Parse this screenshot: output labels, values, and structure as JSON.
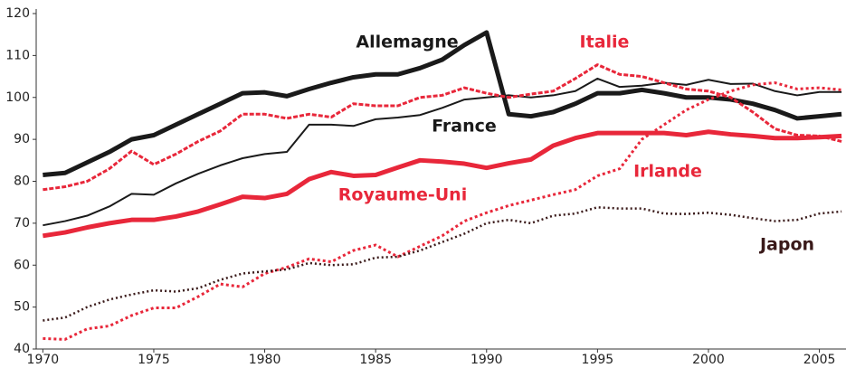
{
  "chart_data": {
    "type": "line",
    "x": [
      1970,
      1971,
      1972,
      1973,
      1974,
      1975,
      1976,
      1977,
      1978,
      1979,
      1980,
      1981,
      1982,
      1983,
      1984,
      1985,
      1986,
      1987,
      1988,
      1989,
      1990,
      1991,
      1992,
      1993,
      1994,
      1995,
      1996,
      1997,
      1998,
      1999,
      2000,
      2001,
      2002,
      2003,
      2004,
      2005,
      2006
    ],
    "xlim": [
      1969.7,
      2006.2
    ],
    "xticks": [
      1970,
      1975,
      1980,
      1985,
      1990,
      1995,
      2000,
      2005
    ],
    "ylim": [
      40,
      120
    ],
    "yticks": [
      40,
      50,
      60,
      70,
      80,
      90,
      100,
      110,
      120
    ],
    "series": [
      {
        "name": "Allemagne",
        "color": "#1a1a1a",
        "values": [
          81.5,
          82,
          84.5,
          87,
          90,
          91,
          93.5,
          96,
          98.5,
          101,
          101.2,
          100.3,
          102,
          103.5,
          104.8,
          105.5,
          105.5,
          107,
          109,
          112.5,
          115.5,
          96,
          95.5,
          96.5,
          98.5,
          101,
          101,
          101.8,
          101,
          100,
          100,
          99.5,
          98.5,
          97,
          95,
          95.5,
          96
        ]
      },
      {
        "name": "France",
        "color": "#1a1a1a",
        "values": [
          69.5,
          70.5,
          71.8,
          74,
          77,
          76.8,
          79.5,
          81.8,
          83.8,
          85.5,
          86.5,
          87,
          93.5,
          93.5,
          93.2,
          94.8,
          95.2,
          95.8,
          97.5,
          99.5,
          100,
          100.5,
          100,
          100.5,
          101.5,
          104.5,
          102.5,
          102.8,
          103.5,
          103,
          104.2,
          103.2,
          103.3,
          101.5,
          100.5,
          101.3,
          101.3
        ]
      },
      {
        "name": "Italie",
        "color": "#e8273a",
        "values": [
          78,
          78.7,
          80,
          83,
          87.2,
          84,
          86.5,
          89.5,
          92,
          96,
          96,
          95,
          96,
          95.3,
          98.5,
          98,
          98,
          100,
          100.5,
          102.3,
          101,
          100,
          100.8,
          101.5,
          104.5,
          107.8,
          105.5,
          105,
          103.5,
          102,
          101.5,
          100,
          96.5,
          92.5,
          91,
          90.8,
          89.5
        ]
      },
      {
        "name": "Royaume-Uni",
        "color": "#e8273a",
        "values": [
          67,
          67.8,
          69,
          70,
          70.8,
          70.8,
          71.6,
          72.8,
          74.5,
          76.3,
          76,
          77,
          80.5,
          82.2,
          81.3,
          81.5,
          83.3,
          85,
          84.7,
          84.2,
          83.2,
          84.3,
          85.2,
          88.5,
          90.3,
          91.5,
          91.5,
          91.5,
          91.5,
          91,
          91.8,
          91.2,
          90.8,
          90.3,
          90.3,
          90.5,
          90.8
        ]
      },
      {
        "name": "Irlande",
        "color": "#e8273a",
        "values": [
          42.5,
          42.3,
          44.8,
          45.5,
          48,
          49.8,
          49.8,
          52.5,
          55.5,
          54.8,
          58,
          59.5,
          61.5,
          60.8,
          63.5,
          64.8,
          62,
          64.5,
          67,
          70.5,
          72.5,
          74.2,
          75.5,
          76.8,
          78,
          81.3,
          83,
          90,
          93.5,
          97,
          99.5,
          101.5,
          103,
          103.5,
          102,
          102.3,
          101.8
        ]
      },
      {
        "name": "Japon",
        "color": "#3a1a1a",
        "values": [
          46.8,
          47.5,
          50,
          51.8,
          53,
          54,
          53.7,
          54.5,
          56.5,
          58,
          58.5,
          59,
          60.5,
          60,
          60.2,
          61.8,
          62,
          63.5,
          65.5,
          67.5,
          70,
          70.8,
          70,
          71.8,
          72.3,
          73.8,
          73.5,
          73.5,
          72.3,
          72.2,
          72.5,
          72,
          71.2,
          70.5,
          70.8,
          72.3,
          72.8
        ]
      }
    ]
  }
}
